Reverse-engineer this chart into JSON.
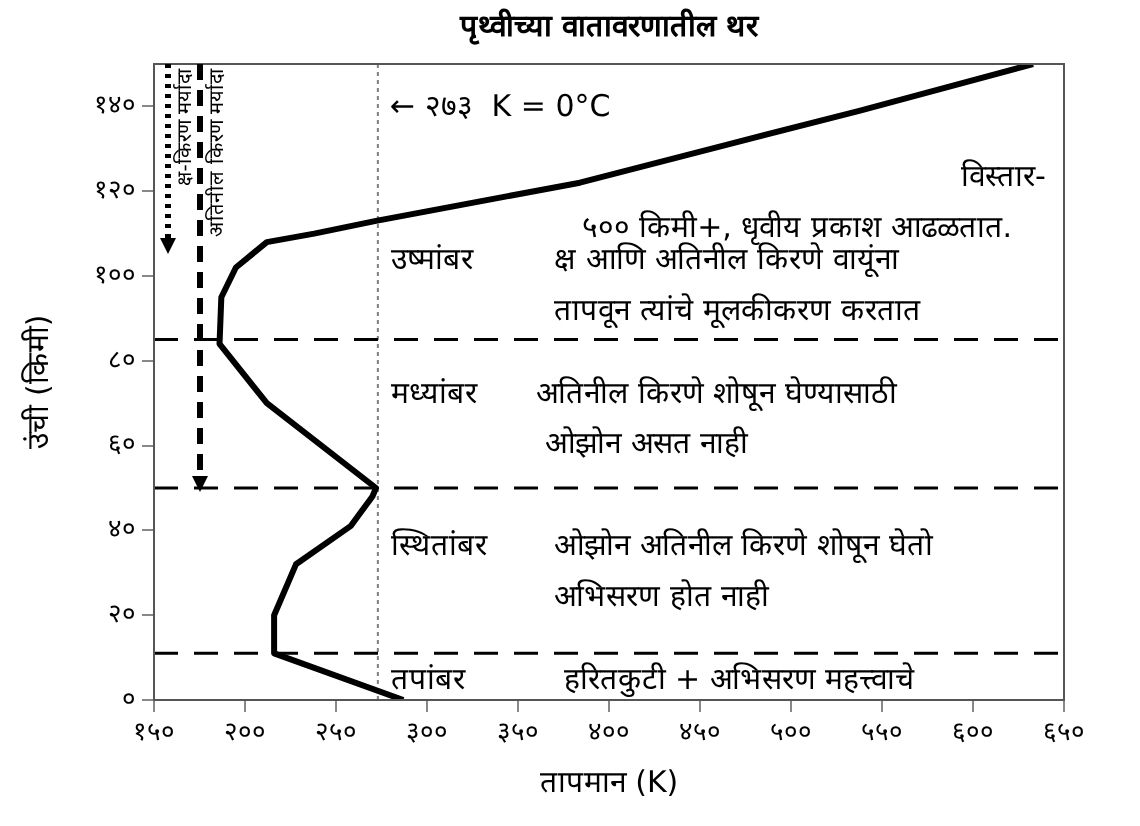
{
  "chart_data": {
    "type": "line",
    "title": "पृथ्वीच्या वातावरणातील थर",
    "xlabel": "तापमान (K)",
    "ylabel": "उंची (किमी)",
    "xlim": [
      150,
      650
    ],
    "ylim": [
      0,
      150
    ],
    "xticks": [
      {
        "value": 150,
        "label": "१५०"
      },
      {
        "value": 200,
        "label": "२००"
      },
      {
        "value": 250,
        "label": "२५०"
      },
      {
        "value": 300,
        "label": "३००"
      },
      {
        "value": 350,
        "label": "३५०"
      },
      {
        "value": 400,
        "label": "४००"
      },
      {
        "value": 450,
        "label": "४५०"
      },
      {
        "value": 500,
        "label": "५००"
      },
      {
        "value": 550,
        "label": "५५०"
      },
      {
        "value": 600,
        "label": "६००"
      },
      {
        "value": 650,
        "label": "६५०"
      }
    ],
    "yticks": [
      {
        "value": 0,
        "label": "०"
      },
      {
        "value": 20,
        "label": "२०"
      },
      {
        "value": 40,
        "label": "४०"
      },
      {
        "value": 60,
        "label": "६०"
      },
      {
        "value": 80,
        "label": "८०"
      },
      {
        "value": 100,
        "label": "१००"
      },
      {
        "value": 120,
        "label": "१२०"
      },
      {
        "value": 140,
        "label": "१४०"
      }
    ],
    "series": [
      {
        "color": "#000000",
        "x": [
          287,
          216,
          216,
          228,
          258,
          270,
          272,
          212,
          186,
          187,
          195,
          212,
          238,
          272,
          384,
          465,
          538,
          633
        ],
        "values": [
          0,
          11,
          20,
          32,
          41,
          48,
          50,
          70,
          84,
          95,
          102,
          108,
          110,
          113,
          122,
          131,
          139,
          150
        ]
      }
    ],
    "marker": "none",
    "line_style": "solid",
    "grid": false,
    "legend": false,
    "ref_lines": [
      {
        "axis": "x",
        "value": 273,
        "label": "← २७३  K = 0°C",
        "color": "#808080",
        "line_style": "dotted"
      },
      {
        "axis": "y",
        "value": 11,
        "color": "#000000",
        "line_style": "dashed"
      },
      {
        "axis": "y",
        "value": 50,
        "color": "#000000",
        "line_style": "dashed"
      },
      {
        "axis": "y",
        "value": 85,
        "color": "#000000",
        "line_style": "dashed"
      }
    ],
    "annotations": [
      "क्ष-किरण मर्यादा",
      "अतिनील किरण मर्यादा",
      "विस्तार-",
      "५०० किमी+, धृवीय प्रकाश आढळतात.",
      "उष्मांबर",
      "क्ष आणि अतिनील किरणे वायूंना",
      "तापवून त्यांचे मूलकीकरण करतात",
      "मध्यांबर",
      "अतिनील किरणे शोषून घेण्यासाठी",
      "ओझोन असत नाही",
      "स्थितांबर",
      "ओझोन अतिनील किरणे शोषून घेतो",
      "अभिसरण होत नाही",
      "तपांबर",
      "हरितकुटी + अभिसरण महत्त्वाचे"
    ]
  }
}
